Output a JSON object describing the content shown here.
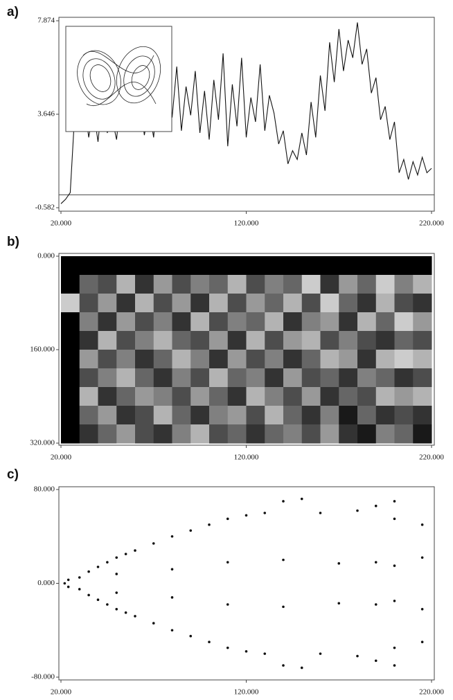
{
  "chart_data": [
    {
      "type": "line",
      "title": "a)",
      "x": [
        20,
        22.5,
        25,
        27.5,
        30,
        32.5,
        35,
        37.5,
        40,
        42.5,
        45,
        47.5,
        50,
        52.5,
        55,
        57.5,
        60,
        62.5,
        65,
        67.5,
        70,
        72.5,
        75,
        77.5,
        80,
        82.5,
        85,
        87.5,
        90,
        92.5,
        95,
        97.5,
        100,
        102.5,
        105,
        107.5,
        110,
        112.5,
        115,
        117.5,
        120,
        122.5,
        125,
        127.5,
        130,
        132.5,
        135,
        137.5,
        140,
        142.5,
        145,
        147.5,
        150,
        152.5,
        155,
        157.5,
        160,
        162.5,
        165,
        167.5,
        170,
        172.5,
        175,
        177.5,
        180,
        182.5,
        185,
        187.5,
        190,
        192.5,
        195,
        197.5,
        200,
        202.5,
        205,
        207.5,
        210,
        212.5,
        215,
        217.5,
        220
      ],
      "values": [
        -0.4,
        -0.2,
        0.1,
        3.8,
        2.9,
        4.2,
        2.6,
        3.9,
        2.4,
        4.5,
        2.8,
        3.5,
        2.5,
        4.6,
        3.1,
        4.8,
        3.0,
        4.4,
        2.7,
        3.9,
        2.6,
        5.0,
        3.2,
        6.5,
        3.5,
        5.8,
        2.9,
        4.9,
        3.6,
        5.6,
        2.8,
        4.7,
        2.5,
        5.2,
        3.4,
        6.4,
        2.2,
        5.0,
        3.1,
        6.2,
        2.6,
        4.4,
        3.3,
        5.9,
        2.9,
        4.5,
        3.7,
        2.3,
        2.9,
        1.4,
        2.0,
        1.6,
        2.8,
        1.8,
        4.2,
        2.6,
        5.4,
        3.8,
        6.9,
        5.1,
        7.5,
        5.6,
        7.0,
        6.2,
        7.8,
        5.9,
        6.6,
        4.6,
        5.3,
        3.4,
        4.0,
        2.5,
        3.3,
        1.0,
        1.6,
        0.7,
        1.5,
        0.9,
        1.7,
        1.0,
        1.2
      ],
      "color": "#111111",
      "xlim": [
        20,
        220
      ],
      "xticks": [
        {
          "value": 20,
          "label": "20.000"
        },
        {
          "value": 120,
          "label": "120.000"
        },
        {
          "value": 220,
          "label": "220.000"
        }
      ],
      "ylim": [
        -0.582,
        7.874
      ],
      "yticks": [
        {
          "value": -0.582,
          "label": "-0.582"
        },
        {
          "value": 3.646,
          "label": "3.646"
        },
        {
          "value": 7.874,
          "label": "7.874"
        }
      ]
    },
    {
      "type": "heatmap",
      "title": "b)",
      "z": [
        [
          1,
          1,
          1,
          1,
          1,
          1,
          1,
          1,
          1,
          1,
          1,
          1,
          1,
          1,
          1,
          1,
          1,
          1,
          1,
          1
        ],
        [
          1,
          0.6,
          0.7,
          0.3,
          0.8,
          0.4,
          0.7,
          0.5,
          0.6,
          0.3,
          0.7,
          0.5,
          0.6,
          0.2,
          0.8,
          0.4,
          0.6,
          0.2,
          0.5,
          0.3
        ],
        [
          0.2,
          0.7,
          0.4,
          0.8,
          0.3,
          0.7,
          0.4,
          0.8,
          0.3,
          0.7,
          0.4,
          0.6,
          0.3,
          0.7,
          0.2,
          0.6,
          0.8,
          0.3,
          0.7,
          0.8
        ],
        [
          1,
          0.5,
          0.8,
          0.4,
          0.7,
          0.5,
          0.8,
          0.3,
          0.7,
          0.5,
          0.6,
          0.3,
          0.8,
          0.5,
          0.4,
          0.8,
          0.3,
          0.6,
          0.2,
          0.4
        ],
        [
          1,
          0.8,
          0.3,
          0.7,
          0.5,
          0.3,
          0.6,
          0.7,
          0.4,
          0.8,
          0.3,
          0.7,
          0.4,
          0.3,
          0.7,
          0.5,
          0.7,
          0.8,
          0.6,
          0.7
        ],
        [
          1,
          0.4,
          0.7,
          0.5,
          0.8,
          0.6,
          0.3,
          0.5,
          0.8,
          0.4,
          0.7,
          0.5,
          0.8,
          0.6,
          0.3,
          0.4,
          0.8,
          0.3,
          0.2,
          0.3
        ],
        [
          1,
          0.7,
          0.5,
          0.3,
          0.6,
          0.8,
          0.5,
          0.7,
          0.3,
          0.6,
          0.5,
          0.8,
          0.4,
          0.7,
          0.6,
          0.8,
          0.5,
          0.6,
          0.8,
          0.7
        ],
        [
          1,
          0.3,
          0.8,
          0.6,
          0.4,
          0.5,
          0.7,
          0.4,
          0.6,
          0.8,
          0.3,
          0.5,
          0.7,
          0.4,
          0.8,
          0.6,
          0.7,
          0.3,
          0.4,
          0.3
        ],
        [
          1,
          0.6,
          0.4,
          0.8,
          0.7,
          0.3,
          0.6,
          0.8,
          0.5,
          0.4,
          0.7,
          0.3,
          0.6,
          0.8,
          0.5,
          0.9,
          0.6,
          0.8,
          0.7,
          0.8
        ],
        [
          1,
          0.8,
          0.6,
          0.4,
          0.7,
          0.8,
          0.5,
          0.3,
          0.7,
          0.6,
          0.8,
          0.6,
          0.5,
          0.7,
          0.4,
          0.8,
          0.9,
          0.5,
          0.6,
          0.9
        ]
      ],
      "xlim": [
        20,
        220
      ],
      "xticks": [
        {
          "value": 20,
          "label": "20.000"
        },
        {
          "value": 120,
          "label": "120.000"
        },
        {
          "value": 220,
          "label": "220.000"
        }
      ],
      "ylim": [
        320,
        0
      ],
      "yticks": [
        {
          "value": 0,
          "label": "0.000"
        },
        {
          "value": 160,
          "label": "160.000"
        },
        {
          "value": 320,
          "label": "320.000"
        }
      ]
    },
    {
      "type": "scatter",
      "title": "c)",
      "x": [
        22,
        24,
        24,
        30,
        30,
        35,
        35,
        40,
        40,
        45,
        45,
        50,
        50,
        55,
        55,
        60,
        60,
        70,
        70,
        80,
        80,
        90,
        90,
        100,
        100,
        110,
        110,
        120,
        120,
        130,
        130,
        140,
        140,
        150,
        150,
        160,
        160,
        180,
        180,
        190,
        190,
        200,
        200,
        50,
        50,
        80,
        80,
        110,
        110,
        140,
        140,
        170,
        170,
        190,
        190,
        200,
        200,
        200,
        200,
        215,
        215,
        215,
        215
      ],
      "y": [
        0,
        -3,
        3,
        5,
        -5,
        10,
        -10,
        14,
        -14,
        18,
        -18,
        22,
        -22,
        25,
        -25,
        28,
        -28,
        34,
        -34,
        40,
        -40,
        45,
        -45,
        50,
        -50,
        55,
        -55,
        58,
        -58,
        60,
        -60,
        70,
        -70,
        72,
        -72,
        60,
        -60,
        62,
        -62,
        66,
        -66,
        70,
        -70,
        8,
        -8,
        12,
        -12,
        18,
        -18,
        20,
        -20,
        17,
        -17,
        18,
        -18,
        55,
        -55,
        15,
        -15,
        22,
        -22,
        -50,
        50
      ],
      "color": "#111111",
      "xlim": [
        20,
        220
      ],
      "xticks": [
        {
          "value": 20,
          "label": "20.000"
        },
        {
          "value": 120,
          "label": "120.000"
        },
        {
          "value": 220,
          "label": "220.000"
        }
      ],
      "ylim": [
        -80,
        80
      ],
      "yticks": [
        {
          "value": -80,
          "label": "-80.000"
        },
        {
          "value": 0,
          "label": "0.000"
        },
        {
          "value": 80,
          "label": "80.000"
        }
      ]
    }
  ]
}
